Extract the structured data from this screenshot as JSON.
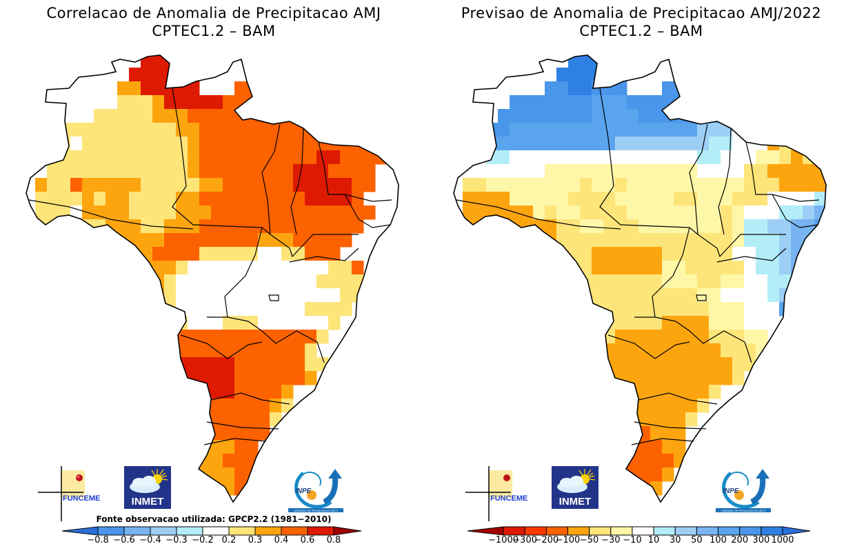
{
  "panels": [
    {
      "id": "correlation",
      "title_line1": "Correlacao de Anomalia de Precipitacao AMJ",
      "title_line2": "CPTEC1.2 – BAM",
      "source_note": "Fonte observacao utilizada: GPCP2.2 (1981−2010)",
      "colorbar": {
        "labels": [
          "−0.8",
          "−0.6",
          "−0.4",
          "−0.3",
          "−0.2",
          "0.2",
          "0.3",
          "0.4",
          "0.6",
          "0.8"
        ],
        "colors": [
          "#2a6fd8",
          "#4a96ea",
          "#78b4f2",
          "#9dcff6",
          "#b3eef8",
          "#ffffff",
          "#fee57a",
          "#fda50f",
          "#fd6200",
          "#de1a02",
          "#a00000"
        ]
      },
      "legend_index_meaning": "0=<-0.8 ... 5=-0.2..0.2 ... 10=>0.8",
      "field": [
        "..........99999.........99......",
        ".........999999.........8.......",
        "........7799999...8888886.......",
        ".....555666799999888888866......",
        "....556666677788888888888888....",
        "...6666666666778888888888888888.",
        "...6566666666678888888888888888.",
        "..66666666666678888888888998888.",
        "..6666666666667888888889998888.",
        ".76687777766666778888889999988..",
        ".6666767766667788888888899998...",
        ".66657777666677788888888888888..",
        ".6666667776677788888888888888...",
        "..66677777778888888877788888....",
        "...666777778888666665566888.....",
        "....6677777776555555555555668...",
        ".....677777765555555555556666...",
        "......667777655555555555555666..",
        "......6677776555555555556666....",
        ".......77777765556665555556.....",
        ".......7778888888888888886......",
        "........78888888888888886.......",
        "........888899999988888866......",
        "........88899999998888887.......",
        ".........88999999988887.........",
        "..........8889988888876.........",
        "...........88888888886..........",
        "............888888888...........",
        "............66777788............",
        "...........667777888............",
        "..........6666677788............",
        "...........66767778.............",
        "............6666................"
      ]
    },
    {
      "id": "forecast",
      "title_line1": "Previsao de Anomalia de Precipitacao AMJ/2022",
      "title_line2": "CPTEC1.2 – BAM",
      "colorbar": {
        "labels": [
          "−1000",
          "−300",
          "−200",
          "−100",
          "−50",
          "−30",
          "−10",
          "10",
          "30",
          "50",
          "100",
          "200",
          "300",
          "1000"
        ],
        "colors": [
          "#a00000",
          "#de1a02",
          "#fd3a00",
          "#fd6200",
          "#fda50f",
          "#fee57a",
          "#fff7a8",
          "#ffffff",
          "#b3eef8",
          "#9dcff6",
          "#78b4f2",
          "#5aa4ee",
          "#4a96ea",
          "#2f80e3",
          "#2a6fd8"
        ]
      },
      "legend_index_meaning": "0=<-1000 ... 7=-10..10 ... 14=>1000",
      "field": [
        "..........DDDD..........DD......",
        ".........DDDDDC.........CB......",
        "........CCDDCCC...CCCCCBB.......",
        ".....CCCCCCCBBBCCCCCBBBB9.......",
        "....CCCCCCCCBBBBCCCCCBB998888...",
        "...CCBBBBBBBBBBBBBBBB99977755...",
        "...BBBBBBBBBBB9999999988777455..",
        "...8877777777777777778877766545.",
        "...77777666666666666677775544444",
        ".55666666665665666666666655544444",
        ".4444666665555666665566655577778.",
        ".444444656655556666666656777889A.",
        ".4444444455665556666666568899AAB.",
        "..444444455555555555555568889AABB",
        "...44444555544444455555577889AAB",
        "....4444555544444466555557889AAB",
        ".....4444555555555666556677889AB.",
        "......44445555555555566777789AB..",
        "......4455555555555555666777B....",
        ".......555555555554444666777.....",
        ".......55555554444444455566......",
        "........5555444444444445556......",
        "........5544444444444444556......",
        "........44444444444444445........",
        ".........44444444444445..........",
        "..........444444444445...........",
        "...........3333444445............",
        "............33333444.............",
        "............33333344.............",
        "...........4333333344............",
        "..........433333334..............",
        "...........4333334...............",
        "............4444................."
      ]
    }
  ],
  "logos": {
    "funceme": "FUNCEME",
    "inmet": "INMET",
    "inpe": "INPE",
    "inpe_subtitle": "UNIDADE DE PESQUISA DO MCTI"
  }
}
